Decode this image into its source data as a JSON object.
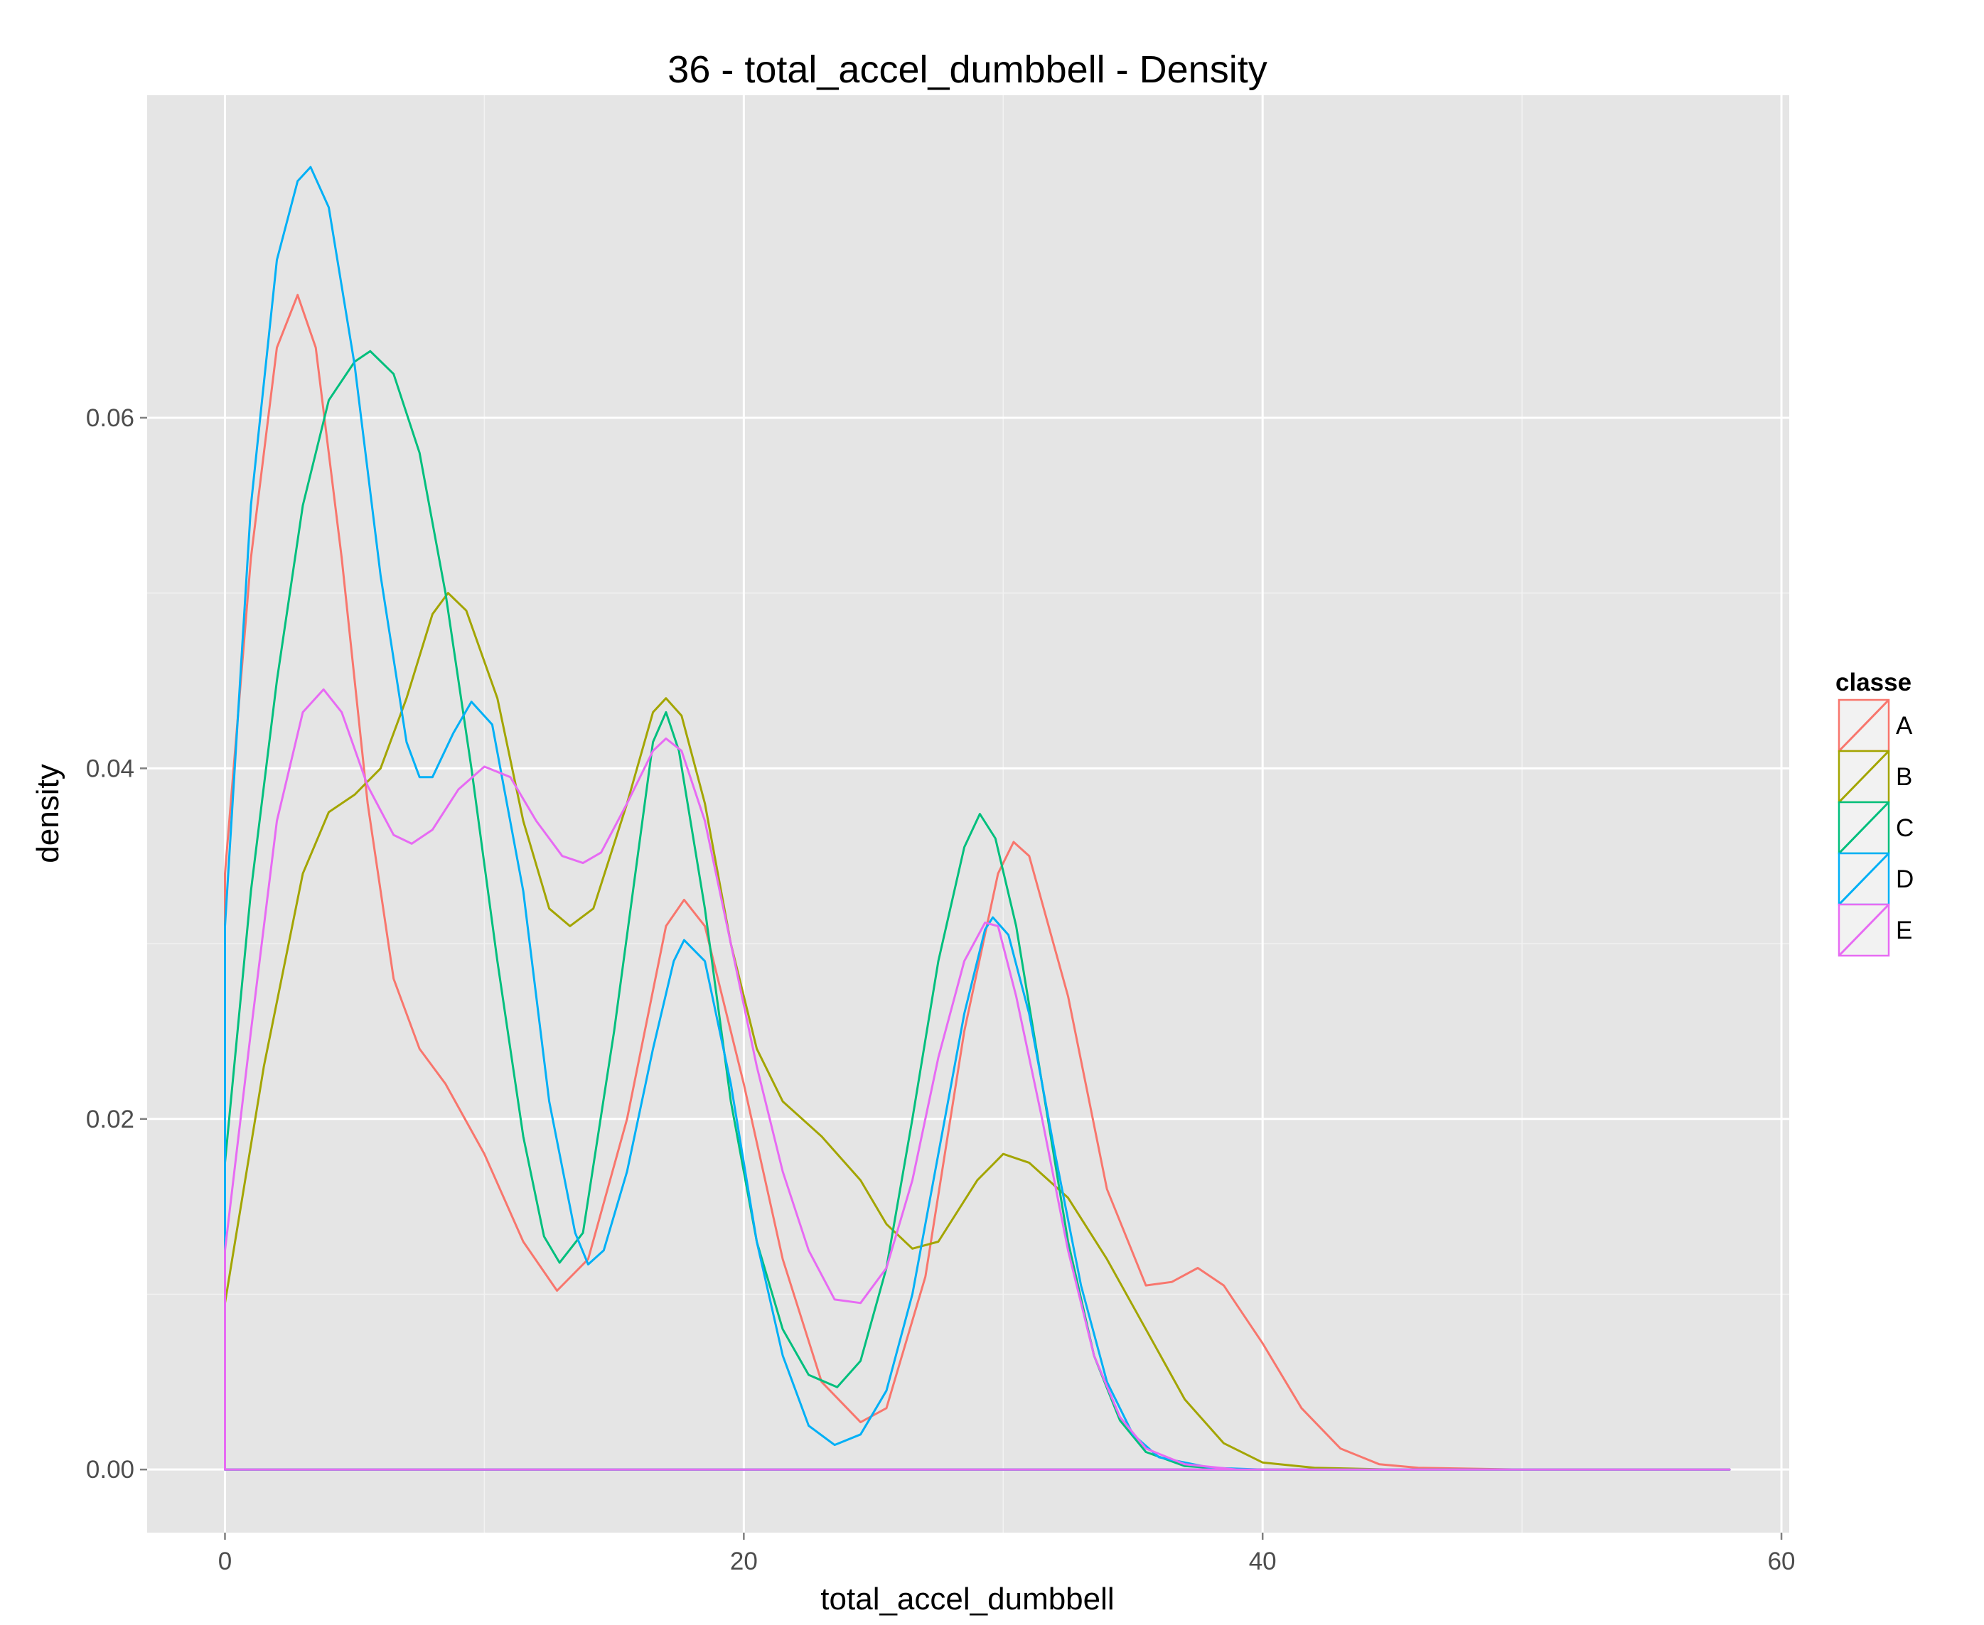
{
  "chart_data": {
    "type": "line",
    "title": "36 - total_accel_dumbbell - Density",
    "xlabel": "total_accel_dumbbell",
    "ylabel": "density",
    "xlim": [
      -3,
      60.3
    ],
    "ylim": [
      -0.0036,
      0.0784
    ],
    "x_ticks": [
      0,
      20,
      40,
      60
    ],
    "y_ticks": [
      0.0,
      0.02,
      0.04,
      0.06
    ],
    "x_tick_labels": [
      "0",
      "20",
      "40",
      "60"
    ],
    "y_tick_labels": [
      "0.00",
      "0.02",
      "0.04",
      "0.06"
    ],
    "grid": true,
    "legend": {
      "title": "classe",
      "position": "right"
    },
    "series": [
      {
        "name": "A",
        "color": "#F8766D",
        "points": [
          [
            0,
            0.034
          ],
          [
            1,
            0.052
          ],
          [
            2,
            0.064
          ],
          [
            2.8,
            0.067
          ],
          [
            3.5,
            0.064
          ],
          [
            4.5,
            0.052
          ],
          [
            5.5,
            0.038
          ],
          [
            6.5,
            0.028
          ],
          [
            7.5,
            0.024
          ],
          [
            8.5,
            0.022
          ],
          [
            10,
            0.018
          ],
          [
            11.5,
            0.013
          ],
          [
            12.8,
            0.0102
          ],
          [
            14,
            0.012
          ],
          [
            15.5,
            0.02
          ],
          [
            17,
            0.031
          ],
          [
            17.7,
            0.0325
          ],
          [
            18.5,
            0.031
          ],
          [
            20,
            0.022
          ],
          [
            21.5,
            0.012
          ],
          [
            23,
            0.005
          ],
          [
            24.5,
            0.0027
          ],
          [
            25.5,
            0.0035
          ],
          [
            27,
            0.011
          ],
          [
            28.5,
            0.025
          ],
          [
            29.8,
            0.034
          ],
          [
            30.4,
            0.0358
          ],
          [
            31,
            0.035
          ],
          [
            32.5,
            0.027
          ],
          [
            34,
            0.016
          ],
          [
            35.5,
            0.0105
          ],
          [
            36.5,
            0.0107
          ],
          [
            37.5,
            0.0115
          ],
          [
            38.5,
            0.0105
          ],
          [
            40,
            0.0072
          ],
          [
            41.5,
            0.0035
          ],
          [
            43,
            0.0012
          ],
          [
            44.5,
            0.0003
          ],
          [
            46,
            0.0001
          ],
          [
            50,
            0.0
          ],
          [
            58,
            0.0
          ]
        ]
      },
      {
        "name": "B",
        "color": "#A3A500",
        "points": [
          [
            0,
            0.0095
          ],
          [
            1.5,
            0.023
          ],
          [
            3,
            0.034
          ],
          [
            4,
            0.0375
          ],
          [
            5,
            0.0385
          ],
          [
            6,
            0.04
          ],
          [
            7,
            0.044
          ],
          [
            8,
            0.0488
          ],
          [
            8.6,
            0.05
          ],
          [
            9.3,
            0.049
          ],
          [
            10.5,
            0.044
          ],
          [
            11.5,
            0.037
          ],
          [
            12.5,
            0.032
          ],
          [
            13.3,
            0.031
          ],
          [
            14.2,
            0.032
          ],
          [
            15.5,
            0.038
          ],
          [
            16.5,
            0.0432
          ],
          [
            17,
            0.044
          ],
          [
            17.6,
            0.043
          ],
          [
            18.5,
            0.038
          ],
          [
            19.5,
            0.03
          ],
          [
            20.5,
            0.024
          ],
          [
            21.5,
            0.021
          ],
          [
            23,
            0.019
          ],
          [
            24.5,
            0.0165
          ],
          [
            25.5,
            0.014
          ],
          [
            26.5,
            0.0126
          ],
          [
            27.5,
            0.013
          ],
          [
            29,
            0.0165
          ],
          [
            30,
            0.018
          ],
          [
            31,
            0.0175
          ],
          [
            32.5,
            0.0155
          ],
          [
            34,
            0.012
          ],
          [
            35.5,
            0.008
          ],
          [
            37,
            0.004
          ],
          [
            38.5,
            0.0015
          ],
          [
            40,
            0.0004
          ],
          [
            42,
            0.0001
          ],
          [
            45,
            0.0
          ],
          [
            58,
            0.0
          ]
        ]
      },
      {
        "name": "C",
        "color": "#00BF7D",
        "points": [
          [
            0,
            0.0175
          ],
          [
            1,
            0.033
          ],
          [
            2,
            0.045
          ],
          [
            3,
            0.055
          ],
          [
            4,
            0.061
          ],
          [
            5,
            0.0632
          ],
          [
            5.6,
            0.0638
          ],
          [
            6.5,
            0.0625
          ],
          [
            7.5,
            0.058
          ],
          [
            8.5,
            0.05
          ],
          [
            9.5,
            0.04
          ],
          [
            10.5,
            0.029
          ],
          [
            11.5,
            0.019
          ],
          [
            12.3,
            0.0133
          ],
          [
            12.9,
            0.0118
          ],
          [
            13.8,
            0.0135
          ],
          [
            15,
            0.025
          ],
          [
            16,
            0.036
          ],
          [
            16.5,
            0.0415
          ],
          [
            17,
            0.0432
          ],
          [
            17.5,
            0.041
          ],
          [
            18.5,
            0.032
          ],
          [
            19.5,
            0.021
          ],
          [
            20.5,
            0.013
          ],
          [
            21.5,
            0.008
          ],
          [
            22.5,
            0.0054
          ],
          [
            23.6,
            0.0047
          ],
          [
            24.5,
            0.0062
          ],
          [
            25.5,
            0.0115
          ],
          [
            26.5,
            0.02
          ],
          [
            27.5,
            0.029
          ],
          [
            28.5,
            0.0355
          ],
          [
            29.1,
            0.0374
          ],
          [
            29.7,
            0.036
          ],
          [
            30.5,
            0.031
          ],
          [
            31.5,
            0.022
          ],
          [
            32.5,
            0.013
          ],
          [
            33.5,
            0.0065
          ],
          [
            34.5,
            0.0028
          ],
          [
            35.5,
            0.001
          ],
          [
            37,
            0.0002
          ],
          [
            39,
            0.0
          ],
          [
            58,
            0.0
          ]
        ]
      },
      {
        "name": "D",
        "color": "#00B0F6",
        "points": [
          [
            0,
            0.031
          ],
          [
            1,
            0.055
          ],
          [
            2,
            0.069
          ],
          [
            2.8,
            0.0735
          ],
          [
            3.3,
            0.0743
          ],
          [
            4,
            0.072
          ],
          [
            5,
            0.063
          ],
          [
            6,
            0.051
          ],
          [
            7,
            0.0415
          ],
          [
            7.5,
            0.0395
          ],
          [
            8,
            0.0395
          ],
          [
            8.8,
            0.042
          ],
          [
            9.5,
            0.0438
          ],
          [
            10.3,
            0.0425
          ],
          [
            11.5,
            0.033
          ],
          [
            12.5,
            0.021
          ],
          [
            13.5,
            0.0135
          ],
          [
            14,
            0.0117
          ],
          [
            14.6,
            0.0125
          ],
          [
            15.5,
            0.017
          ],
          [
            16.5,
            0.024
          ],
          [
            17.3,
            0.029
          ],
          [
            17.7,
            0.0302
          ],
          [
            18.5,
            0.029
          ],
          [
            19.5,
            0.022
          ],
          [
            20.5,
            0.013
          ],
          [
            21.5,
            0.0065
          ],
          [
            22.5,
            0.0025
          ],
          [
            23.5,
            0.0014
          ],
          [
            24.5,
            0.002
          ],
          [
            25.5,
            0.0045
          ],
          [
            26.5,
            0.01
          ],
          [
            27.5,
            0.018
          ],
          [
            28.5,
            0.026
          ],
          [
            29.3,
            0.0308
          ],
          [
            29.6,
            0.0315
          ],
          [
            30.2,
            0.0305
          ],
          [
            31,
            0.026
          ],
          [
            32,
            0.018
          ],
          [
            33,
            0.0105
          ],
          [
            34,
            0.005
          ],
          [
            35,
            0.002
          ],
          [
            36,
            0.0007
          ],
          [
            38,
            0.0001
          ],
          [
            40,
            0.0
          ],
          [
            58,
            0.0
          ]
        ]
      },
      {
        "name": "E",
        "color": "#E76BF3",
        "points": [
          [
            0,
            0.0125
          ],
          [
            1,
            0.025
          ],
          [
            2,
            0.037
          ],
          [
            3,
            0.0432
          ],
          [
            3.8,
            0.0445
          ],
          [
            4.5,
            0.0432
          ],
          [
            5.5,
            0.039
          ],
          [
            6.5,
            0.0362
          ],
          [
            7.2,
            0.0357
          ],
          [
            8,
            0.0365
          ],
          [
            9,
            0.0388
          ],
          [
            10,
            0.0401
          ],
          [
            11,
            0.0395
          ],
          [
            12,
            0.037
          ],
          [
            13,
            0.035
          ],
          [
            13.8,
            0.0346
          ],
          [
            14.5,
            0.0352
          ],
          [
            15.5,
            0.038
          ],
          [
            16.5,
            0.041
          ],
          [
            17,
            0.0417
          ],
          [
            17.6,
            0.041
          ],
          [
            18.5,
            0.037
          ],
          [
            19.5,
            0.03
          ],
          [
            20.5,
            0.023
          ],
          [
            21.5,
            0.017
          ],
          [
            22.5,
            0.0125
          ],
          [
            23.5,
            0.0097
          ],
          [
            24.5,
            0.0095
          ],
          [
            25.5,
            0.0115
          ],
          [
            26.5,
            0.0165
          ],
          [
            27.5,
            0.0235
          ],
          [
            28.5,
            0.029
          ],
          [
            29.3,
            0.0312
          ],
          [
            29.8,
            0.031
          ],
          [
            30.5,
            0.027
          ],
          [
            31.5,
            0.02
          ],
          [
            32.5,
            0.0125
          ],
          [
            33.5,
            0.0065
          ],
          [
            34.5,
            0.003
          ],
          [
            35.5,
            0.0012
          ],
          [
            37,
            0.0003
          ],
          [
            39,
            0.0
          ],
          [
            58,
            0.0
          ]
        ]
      }
    ]
  }
}
